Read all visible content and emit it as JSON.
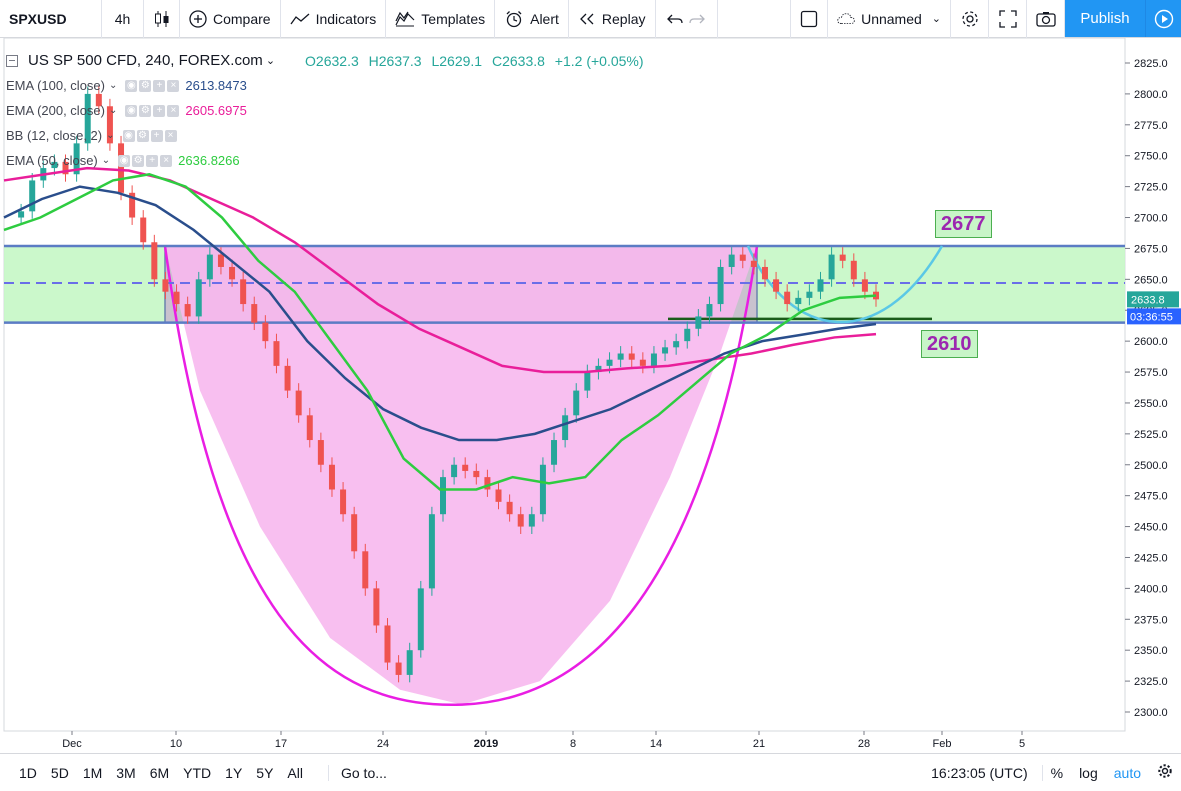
{
  "toolbar": {
    "symbol": "SPXUSD",
    "interval": "4h",
    "compare": "Compare",
    "indicators": "Indicators",
    "templates": "Templates",
    "alert": "Alert",
    "replay": "Replay",
    "layout_name": "Unnamed",
    "publish": "Publish"
  },
  "legend": {
    "title": "US SP 500 CFD, 240, FOREX.com",
    "open": "O2632.3",
    "high": "H2637.3",
    "low": "L2629.1",
    "close": "C2633.8",
    "change": "+1.2 (+0.05%)",
    "indicators": [
      {
        "name": "EMA (100, close)",
        "value": "2613.8473",
        "color": "#2a4e8c"
      },
      {
        "name": "EMA (200, close)",
        "value": "2605.6975",
        "color": "#e91e9a"
      },
      {
        "name": "BB (12, close, 2)",
        "value": "",
        "color": "#9598a1"
      },
      {
        "name": "EMA (50, close)",
        "value": "2636.8266",
        "color": "#2ecc40"
      }
    ]
  },
  "annotations": {
    "upper_label": "2677",
    "lower_label": "2610"
  },
  "price_axis": {
    "ticks": [
      "2825.0",
      "2800.0",
      "2775.0",
      "2750.0",
      "2725.0",
      "2700.0",
      "2675.0",
      "2650.0",
      "2625.0",
      "2600.0",
      "2575.0",
      "2550.0",
      "2525.0",
      "2500.0",
      "2475.0",
      "2450.0",
      "2425.0",
      "2400.0",
      "2375.0",
      "2350.0",
      "2325.0",
      "2300.0"
    ],
    "last_price": "2633.8",
    "countdown": "03:36:55"
  },
  "time_axis": {
    "labels": [
      "Dec",
      "10",
      "17",
      "24",
      "2019",
      "8",
      "14",
      "21",
      "28",
      "Feb",
      "5"
    ]
  },
  "bottom": {
    "ranges": [
      "1D",
      "5D",
      "1M",
      "3M",
      "6M",
      "YTD",
      "1Y",
      "5Y",
      "All"
    ],
    "goto": "Go to...",
    "clock": "16:23:05 (UTC)",
    "percent": "%",
    "log": "log",
    "auto": "auto"
  },
  "colors": {
    "up": "#26a69a",
    "down": "#ef5350",
    "ema50": "#2ecc40",
    "ema100": "#2a4e8c",
    "ema200": "#e91e9a",
    "cup_fill": "#f7b8ee",
    "handle": "#5bc8e6",
    "accent": "#2196f3"
  },
  "chart_data": {
    "type": "line",
    "series": [
      {
        "name": "EMA (50, close)",
        "values_approx": [
          2690,
          2700,
          2715,
          2730,
          2735,
          2725,
          2700,
          2665,
          2640,
          2600,
          2560,
          2505,
          2480,
          2480,
          2490,
          2485,
          2490,
          2520,
          2540,
          2565,
          2590,
          2605,
          2625,
          2635,
          2636.8266
        ]
      },
      {
        "name": "EMA (100, close)",
        "values_approx": [
          2700,
          2715,
          2725,
          2720,
          2710,
          2690,
          2665,
          2640,
          2600,
          2570,
          2545,
          2530,
          2520,
          2520,
          2525,
          2535,
          2545,
          2560,
          2575,
          2590,
          2600,
          2605,
          2610,
          2613.8473
        ]
      },
      {
        "name": "EMA (200, close)",
        "values_approx": [
          2730,
          2735,
          2740,
          2738,
          2730,
          2715,
          2700,
          2680,
          2655,
          2630,
          2610,
          2595,
          2580,
          2575,
          2575,
          2578,
          2580,
          2585,
          2590,
          2597,
          2603,
          2605.6975
        ]
      }
    ],
    "levels": [
      2677,
      2610
    ],
    "ylim": [
      2295,
      2832
    ]
  }
}
